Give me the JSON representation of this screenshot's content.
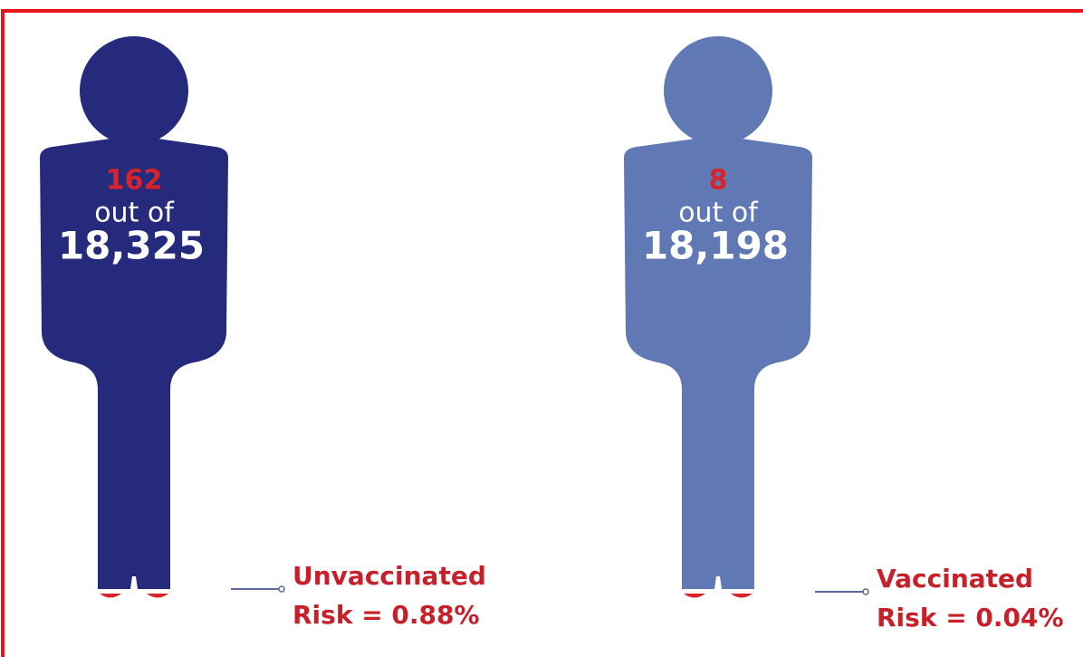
{
  "figures": [
    {
      "count": "162",
      "out_of": "out of",
      "total": "18,325",
      "label": "Unvaccinated",
      "risk": "Risk = 0.88%",
      "color": "#252a7d"
    },
    {
      "count": "8",
      "out_of": "out of",
      "total": "18,198",
      "label": "Vaccinated",
      "risk": "Risk = 0.04%",
      "color": "#6078b4"
    }
  ]
}
